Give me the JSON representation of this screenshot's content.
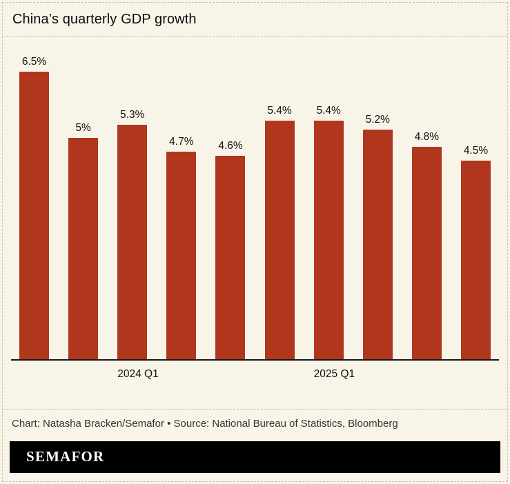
{
  "header": {
    "title": "China’s quarterly GDP growth"
  },
  "chart_data": {
    "type": "bar",
    "title": "China’s quarterly GDP growth",
    "categories": [
      "",
      "",
      "2024 Q1",
      "",
      "",
      "",
      "2025 Q1",
      "",
      "",
      ""
    ],
    "values": [
      6.5,
      5,
      5.3,
      4.7,
      4.6,
      5.4,
      5.4,
      5.2,
      4.8,
      4.5
    ],
    "value_labels": [
      "6.5%",
      "5%",
      "5.3%",
      "4.7%",
      "4.6%",
      "5.4%",
      "5.4%",
      "5.2%",
      "4.8%",
      "4.5%"
    ],
    "xlabel": "",
    "ylabel": "",
    "ylim": [
      0,
      7.3
    ],
    "grid": false,
    "legend": false,
    "bar_color": "#b0371e",
    "background_color": "#f9f4e8",
    "axis_color": "#161616"
  },
  "footer": {
    "credit": "Chart: Natasha Bracken/Semafor • Source: National Bureau of Statistics, Bloomberg",
    "brand": "SEMAFOR"
  }
}
